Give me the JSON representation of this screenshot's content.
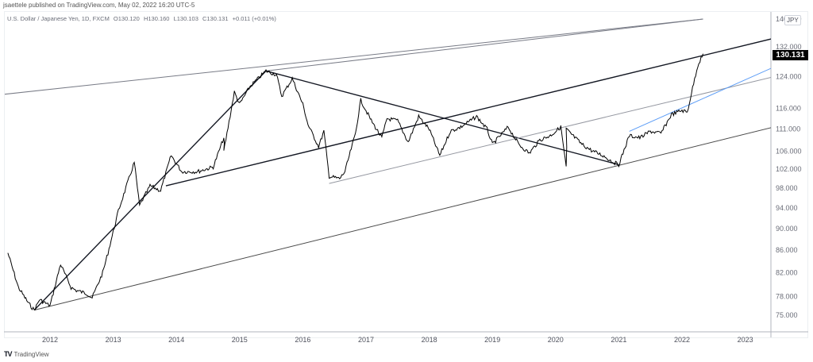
{
  "header": {
    "publisher_line": "jsaettele published on TradingView.com, May 02, 2022 16:20 UTC-5"
  },
  "legend": {
    "symbol": "U.S. Dollar / Japanese Yen, 1D, FXCM",
    "open": "O130.120",
    "high": "H130.160",
    "low": "L130.103",
    "close": "C130.131",
    "change": "+0.011 (+0.01%)"
  },
  "price_axis": {
    "currency": "JPY",
    "last_price": "130.131",
    "last_price_color": "#000000"
  },
  "footer": {
    "logo_mark": "TV",
    "logo_text": "TradingView"
  },
  "chart_data": {
    "type": "line",
    "title": "U.S. Dollar / Japanese Yen, 1D, FXCM",
    "xlabel": "",
    "ylabel": "JPY",
    "x_ticks": [
      "2012",
      "2013",
      "2014",
      "2015",
      "2016",
      "2017",
      "2018",
      "2019",
      "2020",
      "2021",
      "2022",
      "2023"
    ],
    "y_ticks": [
      "140.000",
      "132.000",
      "124.000",
      "116.000",
      "111.000",
      "106.000",
      "102.000",
      "98.000",
      "94.000",
      "90.000",
      "86.000",
      "82.000",
      "78.000",
      "75.000"
    ],
    "y_scale": "log",
    "ylim": [
      73.5,
      142
    ],
    "grid": false,
    "series": [
      {
        "name": "USDJPY close",
        "color": "#000000",
        "points": [
          [
            "2011-05",
            85.5
          ],
          [
            "2011-07",
            79.5
          ],
          [
            "2011-09",
            76.8
          ],
          [
            "2011-10",
            75.8
          ],
          [
            "2011-11",
            77.5
          ],
          [
            "2012-01",
            76.5
          ],
          [
            "2012-03",
            83.5
          ],
          [
            "2012-05",
            79.5
          ],
          [
            "2012-06",
            79.0
          ],
          [
            "2012-08",
            78.5
          ],
          [
            "2012-09",
            77.8
          ],
          [
            "2012-11",
            82.0
          ],
          [
            "2012-12",
            85.5
          ],
          [
            "2013-02",
            93.5
          ],
          [
            "2013-05",
            103.5
          ],
          [
            "2013-06",
            94.5
          ],
          [
            "2013-08",
            98.5
          ],
          [
            "2013-10",
            97.5
          ],
          [
            "2013-12",
            105.0
          ],
          [
            "2014-02",
            101.5
          ],
          [
            "2014-05",
            101.5
          ],
          [
            "2014-08",
            102.5
          ],
          [
            "2014-10",
            109.0
          ],
          [
            "2014-10",
            106.0
          ],
          [
            "2014-12",
            120.0
          ],
          [
            "2015-01",
            117.0
          ],
          [
            "2015-03",
            121.5
          ],
          [
            "2015-06",
            125.5
          ],
          [
            "2015-08",
            124.5
          ],
          [
            "2015-09",
            119.0
          ],
          [
            "2015-11",
            123.5
          ],
          [
            "2016-01",
            117.0
          ],
          [
            "2016-02",
            112.0
          ],
          [
            "2016-04",
            107.0
          ],
          [
            "2016-05",
            110.5
          ],
          [
            "2016-06",
            100.5
          ],
          [
            "2016-08",
            100.0
          ],
          [
            "2016-09",
            101.5
          ],
          [
            "2016-11",
            110.0
          ],
          [
            "2016-12",
            118.0
          ],
          [
            "2017-02",
            113.0
          ],
          [
            "2017-04",
            109.0
          ],
          [
            "2017-05",
            113.5
          ],
          [
            "2017-07",
            113.0
          ],
          [
            "2017-09",
            108.0
          ],
          [
            "2017-11",
            114.0
          ],
          [
            "2018-01",
            111.0
          ],
          [
            "2018-03",
            105.0
          ],
          [
            "2018-05",
            110.5
          ],
          [
            "2018-07",
            111.5
          ],
          [
            "2018-10",
            114.0
          ],
          [
            "2018-12",
            111.0
          ],
          [
            "2019-01",
            107.5
          ],
          [
            "2019-04",
            111.5
          ],
          [
            "2019-06",
            107.5
          ],
          [
            "2019-08",
            105.5
          ],
          [
            "2019-10",
            108.5
          ],
          [
            "2019-12",
            109.5
          ],
          [
            "2020-02",
            111.5
          ],
          [
            "2020-03",
            102.5
          ],
          [
            "2020-03",
            111.0
          ],
          [
            "2020-06",
            107.5
          ],
          [
            "2020-08",
            106.0
          ],
          [
            "2020-10",
            105.0
          ],
          [
            "2020-12",
            103.5
          ],
          [
            "2021-01",
            103.0
          ],
          [
            "2021-03",
            109.5
          ],
          [
            "2021-05",
            109.0
          ],
          [
            "2021-07",
            110.5
          ],
          [
            "2021-09",
            110.0
          ],
          [
            "2021-11",
            114.5
          ],
          [
            "2022-01",
            115.5
          ],
          [
            "2022-02",
            115.0
          ],
          [
            "2022-03",
            121.0
          ],
          [
            "2022-04",
            127.0
          ],
          [
            "2022-05",
            130.131
          ]
        ]
      }
    ],
    "drawings": [
      {
        "name": "upper-channel-line-1",
        "from": [
          "2011-01",
          119.0
        ],
        "to": [
          "2022-05",
          140.0
        ],
        "color": "#787b86"
      },
      {
        "name": "upper-channel-line-2",
        "from": [
          "2015-06",
          125.5
        ],
        "to": [
          "2022-05",
          140.0
        ],
        "color": "#787b86"
      },
      {
        "name": "rise-2012-2015",
        "from": [
          "2011-10",
          75.8
        ],
        "to": [
          "2015-06",
          125.5
        ],
        "color": "#131722"
      },
      {
        "name": "decline-2015-2021",
        "from": [
          "2015-06",
          125.5
        ],
        "to": [
          "2021-01",
          103.0
        ],
        "color": "#131722"
      },
      {
        "name": "rising-trendline-2013-2022",
        "from": [
          "2013-11",
          98.5
        ],
        "to": [
          "2023-08",
          135.0
        ],
        "color": "#131722"
      },
      {
        "name": "lower-channel-line",
        "from": [
          "2011-10",
          75.8
        ],
        "to": [
          "2023-08",
          112.0
        ],
        "color": "#4a4a4a"
      },
      {
        "name": "parallel-2016-line",
        "from": [
          "2016-06",
          99.0
        ],
        "to": [
          "2023-08",
          124.5
        ],
        "color": "#9598a1"
      },
      {
        "name": "blue-2021-trendline",
        "from": [
          "2021-03",
          110.5
        ],
        "to": [
          "2023-08",
          127.5
        ],
        "color": "#5b9cf6"
      }
    ]
  }
}
